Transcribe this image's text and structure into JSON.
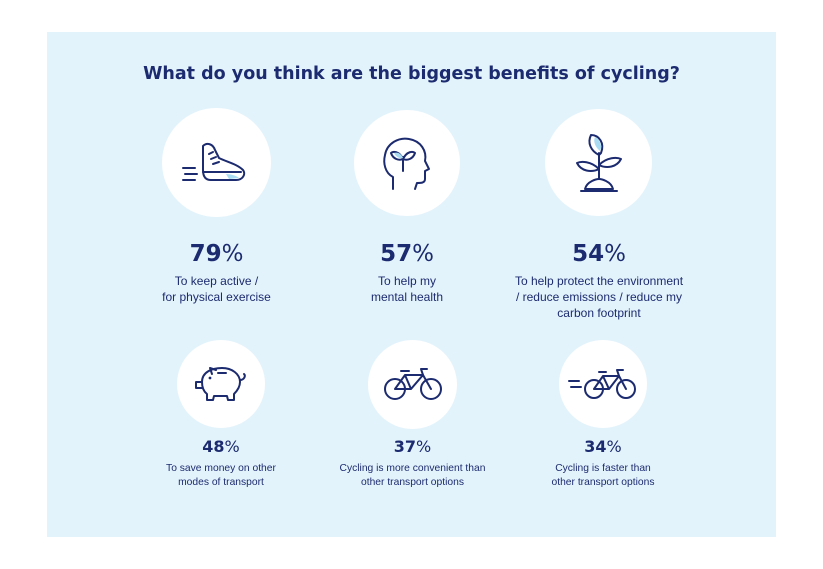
{
  "title": "What do you think are the biggest benefits of cycling?",
  "chart_data": {
    "type": "bar",
    "title": "What do you think are the biggest benefits of cycling?",
    "categories": [
      "To keep active / for physical exercise",
      "To help my mental health",
      "To help protect the environment / reduce emissions / reduce my carbon footprint",
      "To save money on other modes of transport",
      "Cycling is more convenient than other transport options",
      "Cycling is faster than other transport options"
    ],
    "values": [
      79,
      57,
      54,
      48,
      37,
      34
    ],
    "unit": "%"
  },
  "items": [
    {
      "value": "79",
      "symbol": "%",
      "lines": [
        "To keep active /",
        "for physical exercise"
      ],
      "icon": "running-shoe-icon"
    },
    {
      "value": "57",
      "symbol": "%",
      "lines": [
        "To help my",
        "mental health"
      ],
      "icon": "head-sprout-icon"
    },
    {
      "value": "54",
      "symbol": "%",
      "lines": [
        "To help protect the environment",
        "/ reduce emissions / reduce my",
        "carbon footprint"
      ],
      "icon": "plant-icon"
    },
    {
      "value": "48",
      "symbol": "%",
      "lines": [
        "To save money on other",
        "modes of transport"
      ],
      "icon": "piggy-bank-icon"
    },
    {
      "value": "37",
      "symbol": "%",
      "lines": [
        "Cycling is more convenient than",
        "other transport options"
      ],
      "icon": "bicycle-icon"
    },
    {
      "value": "34",
      "symbol": "%",
      "lines": [
        "Cycling is faster than",
        "other transport options"
      ],
      "icon": "fast-bicycle-icon"
    }
  ],
  "colors": {
    "navy": "#1c2b6f",
    "panel": "#e3f3fb",
    "circle": "#ffffff",
    "accent": "#a9dcf2"
  }
}
